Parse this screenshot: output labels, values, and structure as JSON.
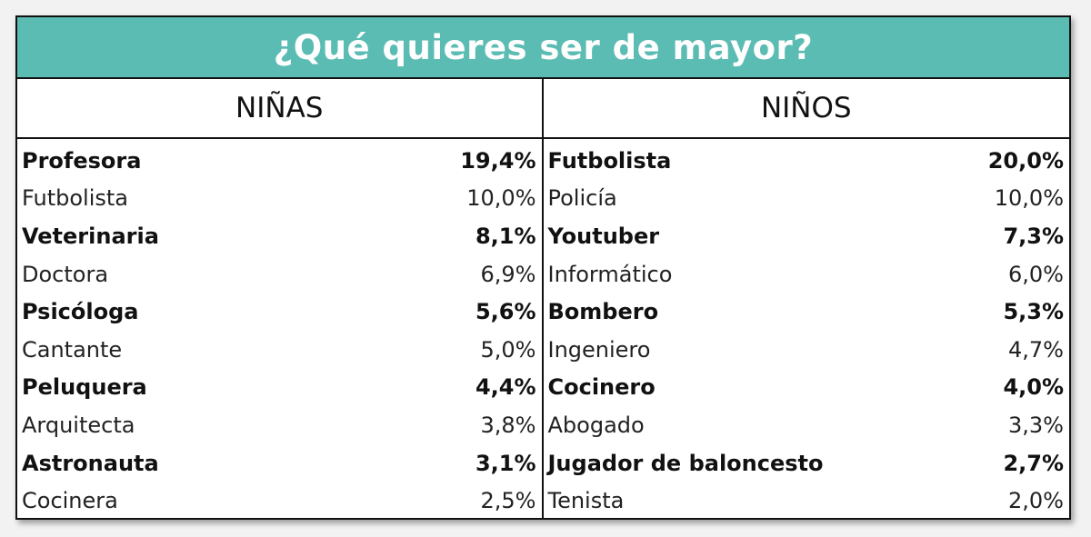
{
  "title": "¿Qué quieres ser de mayor?",
  "headers": {
    "girls": "NIÑAS",
    "boys": "NIÑOS"
  },
  "girls": [
    {
      "job": "Profesora",
      "pct": "19,4%"
    },
    {
      "job": "Futbolista",
      "pct": "10,0%"
    },
    {
      "job": "Veterinaria",
      "pct": "8,1%"
    },
    {
      "job": "Doctora",
      "pct": "6,9%"
    },
    {
      "job": "Psicóloga",
      "pct": "5,6%"
    },
    {
      "job": "Cantante",
      "pct": "5,0%"
    },
    {
      "job": "Peluquera",
      "pct": "4,4%"
    },
    {
      "job": "Arquitecta",
      "pct": "3,8%"
    },
    {
      "job": "Astronauta",
      "pct": "3,1%"
    },
    {
      "job": "Cocinera",
      "pct": "2,5%"
    }
  ],
  "boys": [
    {
      "job": "Futbolista",
      "pct": "20,0%"
    },
    {
      "job": "Policía",
      "pct": "10,0%"
    },
    {
      "job": "Youtuber",
      "pct": "7,3%"
    },
    {
      "job": "Informático",
      "pct": "6,0%"
    },
    {
      "job": "Bombero",
      "pct": "5,3%"
    },
    {
      "job": "Ingeniero",
      "pct": "4,7%"
    },
    {
      "job": "Cocinero",
      "pct": "4,0%"
    },
    {
      "job": "Abogado",
      "pct": "3,3%"
    },
    {
      "job": "Jugador de baloncesto",
      "pct": "2,7%"
    },
    {
      "job": "Tenista",
      "pct": "2,0%"
    }
  ],
  "colors": {
    "title_bg": "#5bbcb3",
    "border": "#111111"
  }
}
